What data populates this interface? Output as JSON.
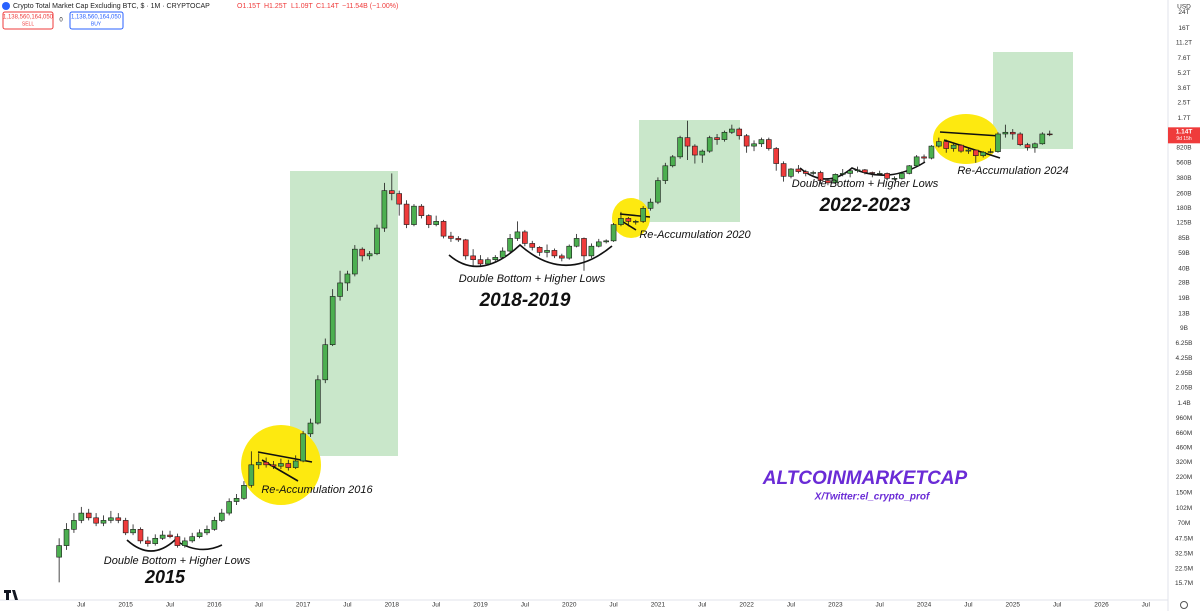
{
  "chart_data": {
    "type": "candlestick",
    "title": "Crypto Total Market Cap Excluding BTC, $ · 1M · CRYPTOCAP",
    "ohlc": [
      "O1.15T",
      "H1.25T",
      "L1.09T",
      "C1.14T",
      "−11.54B (−1.00%)"
    ],
    "sell_price": "1,138,560,164,050",
    "sell_label": "SELL",
    "spread": "0",
    "buy_price": "1,138,560,164,050",
    "buy_label": "BUY",
    "currency": "USD",
    "last_price_label": "1.14T",
    "countdown": "9d 15h",
    "log_scale": true,
    "grid": false,
    "up_color": "#4caf50",
    "down_color": "#ef3b3b",
    "x": [
      "2014-04",
      "2014-05",
      "2014-06",
      "2014-07",
      "2014-08",
      "2014-09",
      "2014-10",
      "2014-11",
      "2014-12",
      "2015-01",
      "2015-02",
      "2015-03",
      "2015-04",
      "2015-05",
      "2015-06",
      "2015-07",
      "2015-08",
      "2015-09",
      "2015-10",
      "2015-11",
      "2015-12",
      "2016-01",
      "2016-02",
      "2016-03",
      "2016-04",
      "2016-05",
      "2016-06",
      "2016-07",
      "2016-08",
      "2016-09",
      "2016-10",
      "2016-11",
      "2016-12",
      "2017-01",
      "2017-02",
      "2017-03",
      "2017-04",
      "2017-05",
      "2017-06",
      "2017-07",
      "2017-08",
      "2017-09",
      "2017-10",
      "2017-11",
      "2017-12",
      "2018-01",
      "2018-02",
      "2018-03",
      "2018-04",
      "2018-05",
      "2018-06",
      "2018-07",
      "2018-08",
      "2018-09",
      "2018-10",
      "2018-11",
      "2018-12",
      "2019-01",
      "2019-02",
      "2019-03",
      "2019-04",
      "2019-05",
      "2019-06",
      "2019-07",
      "2019-08",
      "2019-09",
      "2019-10",
      "2019-11",
      "2019-12",
      "2020-01",
      "2020-02",
      "2020-03",
      "2020-04",
      "2020-05",
      "2020-06",
      "2020-07",
      "2020-08",
      "2020-09",
      "2020-10",
      "2020-11",
      "2020-12",
      "2021-01",
      "2021-02",
      "2021-03",
      "2021-04",
      "2021-05",
      "2021-06",
      "2021-07",
      "2021-08",
      "2021-09",
      "2021-10",
      "2021-11",
      "2021-12",
      "2022-01",
      "2022-02",
      "2022-03",
      "2022-04",
      "2022-05",
      "2022-06",
      "2022-07",
      "2022-08",
      "2022-09",
      "2022-10",
      "2022-11",
      "2022-12",
      "2023-01",
      "2023-02",
      "2023-03",
      "2023-04",
      "2023-05",
      "2023-06",
      "2023-07",
      "2023-08",
      "2023-09",
      "2023-10",
      "2023-11",
      "2023-12",
      "2024-01",
      "2024-02",
      "2024-03",
      "2024-04",
      "2024-05",
      "2024-06",
      "2024-07",
      "2024-08",
      "2024-09",
      "2024-10",
      "2024-11",
      "2024-12",
      "2025-01",
      "2025-02",
      "2025-03",
      "2025-04",
      "2025-05",
      "2025-06"
    ],
    "open": [
      30000000.0,
      40000000.0,
      60000000.0,
      75000000.0,
      90000000.0,
      80000000.0,
      70000000.0,
      75000000.0,
      80000000.0,
      75000000.0,
      55000000.0,
      60000000.0,
      45000000.0,
      42000000.0,
      48000000.0,
      52000000.0,
      50000000.0,
      40000000.0,
      45000000.0,
      50000000.0,
      55000000.0,
      60000000.0,
      75000000.0,
      90000000.0,
      120000000.0,
      130000000.0,
      180000000.0,
      300000000.0,
      320000000.0,
      300000000.0,
      290000000.0,
      310000000.0,
      280000000.0,
      330000000.0,
      650000000.0,
      850000000.0,
      2500000000.0,
      6000000000.0,
      20000000000.0,
      28000000000.0,
      35000000000.0,
      65000000000.0,
      55000000000.0,
      58000000000.0,
      110000000000.0,
      280000000000.0,
      260000000000.0,
      200000000000.0,
      120000000000.0,
      190000000000.0,
      150000000000.0,
      120000000000.0,
      130000000000.0,
      90000000000.0,
      85000000000.0,
      82000000000.0,
      55000000000.0,
      50000000000.0,
      45000000000.0,
      50000000000.0,
      53000000000.0,
      62000000000.0,
      85000000000.0,
      100000000000.0,
      75000000000.0,
      68000000000.0,
      60000000000.0,
      63000000000.0,
      55000000000.0,
      52000000000.0,
      70000000000.0,
      85000000000.0,
      55000000000.0,
      70000000000.0,
      78000000000.0,
      80000000000.0,
      120000000000.0,
      140000000000.0,
      130000000000.0,
      130000000000.0,
      180000000000.0,
      210000000000.0,
      360000000000.0,
      520000000000.0,
      650000000000.0,
      1050000000000.0,
      850000000000.0,
      680000000000.0,
      750000000000.0,
      1050000000000.0,
      1000000000000.0,
      1200000000000.0,
      1300000000000.0,
      1100000000000.0,
      850000000000.0,
      900000000000.0,
      1000000000000.0,
      800000000000.0,
      550000000000.0,
      400000000000.0,
      480000000000.0,
      450000000000.0,
      430000000000.0,
      440000000000.0,
      360000000000.0,
      340000000000.0,
      420000000000.0,
      430000000000.0,
      460000000000.0,
      470000000000.0,
      440000000000.0,
      430000000000.0,
      430000000000.0,
      380000000000.0,
      380000000000.0,
      430000000000.0,
      520000000000.0,
      650000000000.0,
      630000000000.0,
      850000000000.0,
      950000000000.0,
      800000000000.0,
      870000000000.0,
      750000000000.0,
      770000000000.0,
      670000000000.0,
      730000000000.0,
      740000000000.0,
      1150000000000.0,
      1200000000000.0,
      1150000000000.0,
      880000000000.0,
      820000000000.0,
      900000000000.0,
      1150000000000.0
    ],
    "high": [
      48000000.0,
      70000000.0,
      90000000.0,
      105000000.0,
      100000000.0,
      90000000.0,
      85000000.0,
      95000000.0,
      90000000.0,
      80000000.0,
      68000000.0,
      63000000.0,
      50000000.0,
      53000000.0,
      58000000.0,
      58000000.0,
      54000000.0,
      49000000.0,
      55000000.0,
      60000000.0,
      66000000.0,
      82000000.0,
      100000000.0,
      130000000.0,
      145000000.0,
      200000000.0,
      420000000.0,
      400000000.0,
      360000000.0,
      330000000.0,
      350000000.0,
      340000000.0,
      380000000.0,
      700000000.0,
      950000000.0,
      2800000000.0,
      7000000000.0,
      24000000000.0,
      38000000000.0,
      38000000000.0,
      72000000000.0,
      68000000000.0,
      62000000000.0,
      120000000000.0,
      340000000000.0,
      430000000000.0,
      280000000000.0,
      220000000000.0,
      200000000000.0,
      200000000000.0,
      155000000000.0,
      150000000000.0,
      135000000000.0,
      100000000000.0,
      90000000000.0,
      84000000000.0,
      65000000000.0,
      56000000000.0,
      53000000000.0,
      56000000000.0,
      68000000000.0,
      95000000000.0,
      130000000000.0,
      105000000000.0,
      80000000000.0,
      70000000000.0,
      73000000000.0,
      66000000000.0,
      58000000000.0,
      73000000000.0,
      95000000000.0,
      87000000000.0,
      75000000000.0,
      84000000000.0,
      83000000000.0,
      125000000000.0,
      165000000000.0,
      145000000000.0,
      135000000000.0,
      190000000000.0,
      230000000000.0,
      390000000000.0,
      560000000000.0,
      680000000000.0,
      1100000000000.0,
      1600000000000.0,
      890000000000.0,
      780000000000.0,
      1100000000000.0,
      1150000000000.0,
      1250000000000.0,
      1450000000000.0,
      1350000000000.0,
      1150000000000.0,
      980000000000.0,
      1050000000000.0,
      1050000000000.0,
      830000000000.0,
      580000000000.0,
      490000000000.0,
      530000000000.0,
      470000000000.0,
      460000000000.0,
      460000000000.0,
      380000000000.0,
      430000000000.0,
      480000000000.0,
      480000000000.0,
      510000000000.0,
      480000000000.0,
      450000000000.0,
      460000000000.0,
      440000000000.0,
      400000000000.0,
      450000000000.0,
      530000000000.0,
      680000000000.0,
      690000000000.0,
      870000000000.0,
      1050000000000.0,
      1000000000000.0,
      900000000000.0,
      890000000000.0,
      830000000000.0,
      780000000000.0,
      750000000000.0,
      800000000000.0,
      1200000000000.0,
      1450000000000.0,
      1300000000000.0,
      1200000000000.0,
      920000000000.0,
      930000000000.0,
      1200000000000.0,
      1250000000000.0
    ],
    "low": [
      16000000.0,
      36000000.0,
      55000000.0,
      70000000.0,
      75000000.0,
      65000000.0,
      65000000.0,
      70000000.0,
      70000000.0,
      52000000.0,
      52000000.0,
      42000000.0,
      39000000.0,
      40000000.0,
      46000000.0,
      48000000.0,
      38000000.0,
      38000000.0,
      43000000.0,
      48000000.0,
      52000000.0,
      58000000.0,
      72000000.0,
      85000000.0,
      110000000.0,
      125000000.0,
      170000000.0,
      270000000.0,
      280000000.0,
      270000000.0,
      270000000.0,
      260000000.0,
      270000000.0,
      320000000.0,
      600000000.0,
      820000000.0,
      2300000000.0,
      5800000000.0,
      18000000000.0,
      23000000000.0,
      33000000000.0,
      48000000000.0,
      50000000000.0,
      56000000000.0,
      100000000000.0,
      220000000000.0,
      150000000000.0,
      110000000000.0,
      115000000000.0,
      140000000000.0,
      110000000000.0,
      115000000000.0,
      85000000000.0,
      78000000000.0,
      78000000000.0,
      50000000000.0,
      42000000000.0,
      43000000000.0,
      44000000000.0,
      48000000000.0,
      51000000000.0,
      60000000000.0,
      80000000000.0,
      70000000000.0,
      63000000000.0,
      55000000000.0,
      53000000000.0,
      52000000000.0,
      48000000000.0,
      50000000000.0,
      68000000000.0,
      38000000000.0,
      52000000000.0,
      68000000000.0,
      75000000000.0,
      78000000000.0,
      115000000000.0,
      115000000000.0,
      120000000000.0,
      125000000000.0,
      170000000000.0,
      200000000000.0,
      330000000000.0,
      500000000000.0,
      620000000000.0,
      600000000000.0,
      550000000000.0,
      560000000000.0,
      720000000000.0,
      880000000000.0,
      950000000000.0,
      1150000000000.0,
      1000000000000.0,
      720000000000.0,
      750000000000.0,
      830000000000.0,
      760000000000.0,
      460000000000.0,
      350000000000.0,
      380000000000.0,
      430000000000.0,
      400000000000.0,
      410000000000.0,
      330000000000.0,
      320000000000.0,
      330000000000.0,
      400000000000.0,
      390000000000.0,
      440000000000.0,
      420000000000.0,
      390000000000.0,
      410000000000.0,
      360000000000.0,
      360000000000.0,
      370000000000.0,
      420000000000.0,
      510000000000.0,
      570000000000.0,
      610000000000.0,
      820000000000.0,
      720000000000.0,
      740000000000.0,
      720000000000.0,
      700000000000.0,
      560000000000.0,
      640000000000.0,
      710000000000.0,
      720000000000.0,
      1050000000000.0,
      1000000000000.0,
      850000000000.0,
      760000000000.0,
      720000000000.0,
      880000000000.0,
      1090000000000.0
    ],
    "close": [
      40000000.0,
      60000000.0,
      75000000.0,
      90000000.0,
      80000000.0,
      70000000.0,
      75000000.0,
      80000000.0,
      75000000.0,
      55000000.0,
      60000000.0,
      45000000.0,
      42000000.0,
      48000000.0,
      52000000.0,
      50000000.0,
      40000000.0,
      45000000.0,
      50000000.0,
      55000000.0,
      60000000.0,
      75000000.0,
      90000000.0,
      120000000.0,
      130000000.0,
      180000000.0,
      300000000.0,
      320000000.0,
      300000000.0,
      290000000.0,
      310000000.0,
      280000000.0,
      330000000.0,
      650000000.0,
      850000000.0,
      2500000000.0,
      6000000000.0,
      20000000000.0,
      28000000000.0,
      35000000000.0,
      65000000000.0,
      55000000000.0,
      58000000000.0,
      110000000000.0,
      280000000000.0,
      260000000000.0,
      200000000000.0,
      120000000000.0,
      190000000000.0,
      150000000000.0,
      120000000000.0,
      130000000000.0,
      90000000000.0,
      85000000000.0,
      82000000000.0,
      55000000000.0,
      50000000000.0,
      45000000000.0,
      50000000000.0,
      53000000000.0,
      62000000000.0,
      85000000000.0,
      100000000000.0,
      75000000000.0,
      68000000000.0,
      60000000000.0,
      63000000000.0,
      55000000000.0,
      52000000000.0,
      70000000000.0,
      85000000000.0,
      55000000000.0,
      70000000000.0,
      78000000000.0,
      80000000000.0,
      120000000000.0,
      140000000000.0,
      130000000000.0,
      130000000000.0,
      180000000000.0,
      210000000000.0,
      360000000000.0,
      520000000000.0,
      650000000000.0,
      1050000000000.0,
      850000000000.0,
      680000000000.0,
      750000000000.0,
      1050000000000.0,
      1000000000000.0,
      1200000000000.0,
      1300000000000.0,
      1100000000000.0,
      850000000000.0,
      900000000000.0,
      1000000000000.0,
      800000000000.0,
      550000000000.0,
      400000000000.0,
      480000000000.0,
      450000000000.0,
      430000000000.0,
      440000000000.0,
      360000000000.0,
      340000000000.0,
      420000000000.0,
      430000000000.0,
      460000000000.0,
      470000000000.0,
      440000000000.0,
      430000000000.0,
      430000000000.0,
      380000000000.0,
      380000000000.0,
      430000000000.0,
      520000000000.0,
      650000000000.0,
      630000000000.0,
      850000000000.0,
      950000000000.0,
      800000000000.0,
      870000000000.0,
      750000000000.0,
      770000000000.0,
      670000000000.0,
      730000000000.0,
      740000000000.0,
      1150000000000.0,
      1200000000000.0,
      1150000000000.0,
      880000000000.0,
      820000000000.0,
      900000000000.0,
      1150000000000.0,
      1140000000000.0
    ],
    "xlim": [
      "2013-08",
      "2026-10"
    ],
    "xticks": [
      {
        "value": "2014-07",
        "label": "Jul"
      },
      {
        "value": "2015-01",
        "label": "2015"
      },
      {
        "value": "2015-07",
        "label": "Jul"
      },
      {
        "value": "2016-01",
        "label": "2016"
      },
      {
        "value": "2016-07",
        "label": "Jul"
      },
      {
        "value": "2017-01",
        "label": "2017"
      },
      {
        "value": "2017-07",
        "label": "Jul"
      },
      {
        "value": "2018-01",
        "label": "2018"
      },
      {
        "value": "2018-07",
        "label": "Jul"
      },
      {
        "value": "2019-01",
        "label": "2019"
      },
      {
        "value": "2019-07",
        "label": "Jul"
      },
      {
        "value": "2020-01",
        "label": "2020"
      },
      {
        "value": "2020-07",
        "label": "Jul"
      },
      {
        "value": "2021-01",
        "label": "2021"
      },
      {
        "value": "2021-07",
        "label": "Jul"
      },
      {
        "value": "2022-01",
        "label": "2022"
      },
      {
        "value": "2022-07",
        "label": "Jul"
      },
      {
        "value": "2023-01",
        "label": "2023"
      },
      {
        "value": "2023-07",
        "label": "Jul"
      },
      {
        "value": "2024-01",
        "label": "2024"
      },
      {
        "value": "2024-07",
        "label": "Jul"
      },
      {
        "value": "2025-01",
        "label": "2025"
      },
      {
        "value": "2025-07",
        "label": "Jul"
      },
      {
        "value": "2026-01",
        "label": "2026"
      },
      {
        "value": "2026-07",
        "label": "Jul"
      }
    ],
    "ylim": [
      10300000.0,
      32500000000000.0
    ],
    "yticks": [
      {
        "value": 24000000000000.0,
        "label": "24T"
      },
      {
        "value": 16000000000000.0,
        "label": "16T"
      },
      {
        "value": 11200000000000.0,
        "label": "11.2T"
      },
      {
        "value": 7600000000000.0,
        "label": "7.6T"
      },
      {
        "value": 5200000000000.0,
        "label": "5.2T"
      },
      {
        "value": 3600000000000.0,
        "label": "3.6T"
      },
      {
        "value": 2500000000000.0,
        "label": "2.5T"
      },
      {
        "value": 1700000000000.0,
        "label": "1.7T"
      },
      {
        "value": 820000000000.0,
        "label": "820B"
      },
      {
        "value": 560000000000.0,
        "label": "560B"
      },
      {
        "value": 380000000000.0,
        "label": "380B"
      },
      {
        "value": 260000000000.0,
        "label": "260B"
      },
      {
        "value": 180000000000.0,
        "label": "180B"
      },
      {
        "value": 125000000000.0,
        "label": "125B"
      },
      {
        "value": 85000000000.0,
        "label": "85B"
      },
      {
        "value": 59000000000.0,
        "label": "59B"
      },
      {
        "value": 40000000000.0,
        "label": "40B"
      },
      {
        "value": 28000000000.0,
        "label": "28B"
      },
      {
        "value": 19000000000.0,
        "label": "19B"
      },
      {
        "value": 13000000000.0,
        "label": "13B"
      },
      {
        "value": 9000000000.0,
        "label": "9B"
      },
      {
        "value": 6250000000.0,
        "label": "6.25B"
      },
      {
        "value": 4250000000.0,
        "label": "4.25B"
      },
      {
        "value": 2950000000.0,
        "label": "2.95B"
      },
      {
        "value": 2050000000.0,
        "label": "2.05B"
      },
      {
        "value": 1400000000.0,
        "label": "1.4B"
      },
      {
        "value": 960000000.0,
        "label": "960M"
      },
      {
        "value": 660000000.0,
        "label": "660M"
      },
      {
        "value": 460000000.0,
        "label": "460M"
      },
      {
        "value": 320000000.0,
        "label": "320M"
      },
      {
        "value": 220000000.0,
        "label": "220M"
      },
      {
        "value": 150000000.0,
        "label": "150M"
      },
      {
        "value": 102000000.0,
        "label": "102M"
      },
      {
        "value": 70000000.0,
        "label": "70M"
      },
      {
        "value": 47500000.0,
        "label": "47.5M"
      },
      {
        "value": 32500000.0,
        "label": "32.5M"
      },
      {
        "value": 22500000.0,
        "label": "22.5M"
      },
      {
        "value": 15700000.0,
        "label": "15.7M"
      }
    ],
    "annotations": [
      "Double Bottom + Higher Lows",
      "2015",
      "Re-Accumulation 2016",
      "Double Bottom + Higher Lows",
      "2018-2019",
      "Re-Accumulation 2020",
      "Double Bottom + Higher Lows",
      "2022-2023",
      "Re-Accumulation 2024",
      "ALTCOINMARKETCAP",
      "X/Twitter:el_crypto_prof"
    ]
  }
}
